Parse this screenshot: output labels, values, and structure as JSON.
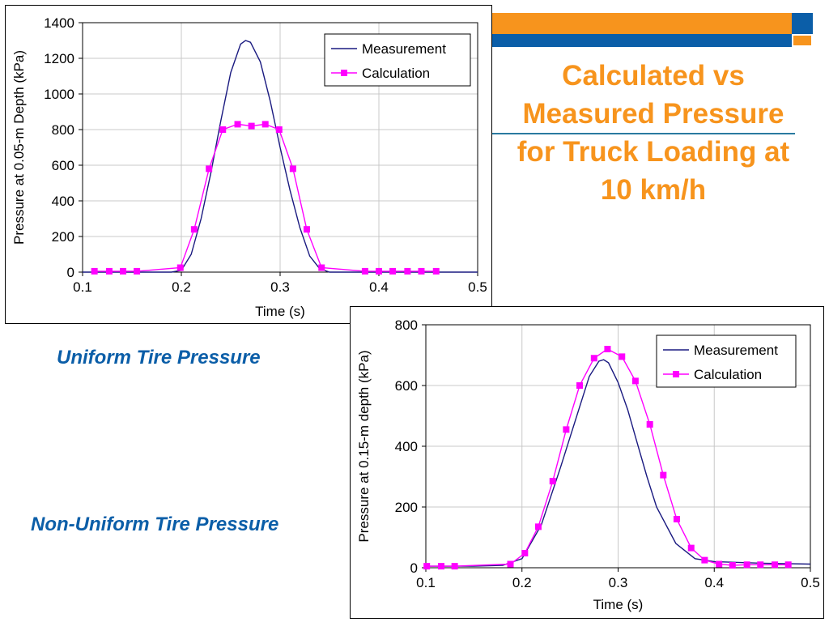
{
  "slide": {
    "title_lines": [
      "Calculated vs",
      "Measured Pressure",
      "for Truck Loading at",
      "10 km/h"
    ],
    "label_uniform": "Uniform Tire Pressure",
    "label_nonuniform": "Non-Uniform Tire Pressure",
    "colors": {
      "accent_orange": "#f7941d",
      "accent_blue": "#0b5ea8",
      "measurement": "#1a1a80",
      "calculation": "#ff00ff"
    }
  },
  "chart_data": [
    {
      "type": "line",
      "title": "",
      "xlabel": "Time (s)",
      "ylabel": "Pressure at 0.05-m Depth (kPa)",
      "xlim": [
        0.1,
        0.5
      ],
      "ylim": [
        0,
        1400
      ],
      "xticks": [
        0.1,
        0.2,
        0.3,
        0.4,
        0.5
      ],
      "xtick_labels": [
        "0.1",
        "0.2",
        "0.3",
        "0.4",
        "0.5"
      ],
      "yticks": [
        0,
        200,
        400,
        600,
        800,
        1000,
        1200,
        1400
      ],
      "ytick_labels": [
        "0",
        "200",
        "400",
        "600",
        "800",
        "1000",
        "1200",
        "1400"
      ],
      "grid": true,
      "legend": "top-right",
      "series": [
        {
          "name": "Measurement",
          "marker": "none",
          "x": [
            0.1,
            0.15,
            0.19,
            0.2,
            0.21,
            0.22,
            0.23,
            0.24,
            0.25,
            0.26,
            0.265,
            0.27,
            0.28,
            0.29,
            0.3,
            0.31,
            0.32,
            0.33,
            0.34,
            0.35,
            0.4,
            0.5
          ],
          "y": [
            0,
            0,
            0,
            10,
            100,
            300,
            560,
            850,
            1120,
            1280,
            1300,
            1290,
            1180,
            960,
            700,
            460,
            250,
            90,
            20,
            0,
            0,
            0
          ]
        },
        {
          "name": "Calculation",
          "marker": "square",
          "x": [
            0.112,
            0.127,
            0.141,
            0.155,
            0.199,
            0.213,
            0.228,
            0.242,
            0.257,
            0.271,
            0.285,
            0.299,
            0.313,
            0.327,
            0.342,
            0.386,
            0.4,
            0.414,
            0.429,
            0.443,
            0.458
          ],
          "y": [
            5,
            5,
            5,
            5,
            25,
            240,
            580,
            800,
            830,
            820,
            830,
            800,
            580,
            240,
            25,
            5,
            5,
            5,
            5,
            5,
            5
          ]
        }
      ]
    },
    {
      "type": "line",
      "title": "",
      "xlabel": "Time (s)",
      "ylabel": "Pressure at 0.15-m depth (kPa)",
      "xlim": [
        0.1,
        0.5
      ],
      "ylim": [
        0,
        800
      ],
      "xticks": [
        0.1,
        0.2,
        0.3,
        0.4,
        0.5
      ],
      "xtick_labels": [
        "0.1",
        "0.2",
        "0.3",
        "0.4",
        "0.5"
      ],
      "yticks": [
        0,
        200,
        400,
        600,
        800
      ],
      "ytick_labels": [
        "0",
        "200",
        "400",
        "600",
        "800"
      ],
      "grid": true,
      "legend": "top-right",
      "series": [
        {
          "name": "Measurement",
          "marker": "none",
          "x": [
            0.1,
            0.15,
            0.18,
            0.2,
            0.22,
            0.24,
            0.26,
            0.27,
            0.28,
            0.285,
            0.29,
            0.3,
            0.31,
            0.32,
            0.33,
            0.34,
            0.36,
            0.38,
            0.4,
            0.45,
            0.5
          ],
          "y": [
            5,
            5,
            8,
            30,
            140,
            330,
            530,
            630,
            680,
            685,
            675,
            610,
            520,
            410,
            300,
            200,
            80,
            30,
            20,
            15,
            12
          ]
        },
        {
          "name": "Calculation",
          "marker": "square",
          "x": [
            0.101,
            0.116,
            0.13,
            0.188,
            0.203,
            0.217,
            0.232,
            0.246,
            0.26,
            0.275,
            0.289,
            0.304,
            0.318,
            0.333,
            0.347,
            0.361,
            0.376,
            0.39,
            0.405,
            0.419,
            0.434,
            0.448,
            0.463,
            0.477
          ],
          "y": [
            5,
            5,
            5,
            12,
            48,
            135,
            285,
            455,
            600,
            690,
            720,
            695,
            615,
            472,
            305,
            160,
            65,
            25,
            12,
            8,
            10,
            10,
            10,
            10
          ]
        }
      ]
    }
  ]
}
